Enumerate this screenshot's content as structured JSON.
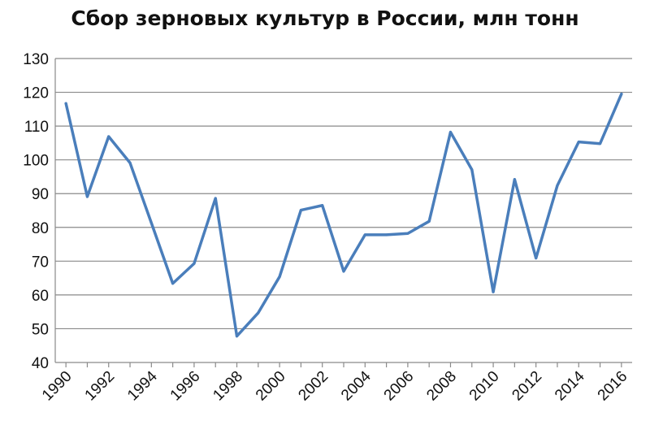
{
  "chart_data": {
    "type": "line",
    "title": "Сбор зерновых культур в России, млн тонн",
    "xlabel": "",
    "ylabel": "",
    "ylim": [
      40,
      130
    ],
    "yticks": [
      40,
      50,
      60,
      70,
      80,
      90,
      100,
      110,
      120,
      130
    ],
    "xticks": [
      "1990",
      "1992",
      "1994",
      "1996",
      "1998",
      "2000",
      "2002",
      "2004",
      "2006",
      "2008",
      "2010",
      "2012",
      "2014",
      "2016"
    ],
    "grid": true,
    "x": [
      1990,
      1991,
      1992,
      1993,
      1994,
      1995,
      1996,
      1997,
      1998,
      1999,
      2000,
      2001,
      2002,
      2003,
      2004,
      2005,
      2006,
      2007,
      2008,
      2009,
      2010,
      2011,
      2012,
      2013,
      2014,
      2015,
      2016
    ],
    "series": [
      {
        "values": [
          116.7,
          89.1,
          106.9,
          99.1,
          81.3,
          63.4,
          69.3,
          88.6,
          47.8,
          54.7,
          65.4,
          85.1,
          86.5,
          67.0,
          77.8,
          77.8,
          78.2,
          81.8,
          108.2,
          97.1,
          60.9,
          94.2,
          70.9,
          92.4,
          105.3,
          104.8,
          119.5
        ],
        "color": "#4a7ebb"
      }
    ]
  }
}
